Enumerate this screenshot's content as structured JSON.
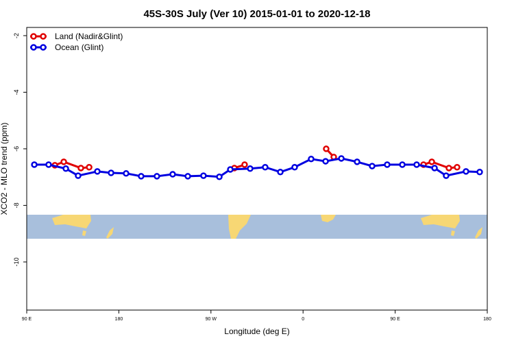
{
  "chart_data": {
    "type": "line",
    "title": "45S-30S July (Ver 10)   2015-01-01 to 2020-12-18",
    "x_label": "Longitude (deg E)",
    "y_label": "XCO2 - MLO trend (ppm)",
    "xlim": [
      90,
      540
    ],
    "ylim": [
      -11.7,
      -1.71
    ],
    "xticks": [
      {
        "value": 90,
        "label": "90 E"
      },
      180,
      {
        "value": 270,
        "label": "90 W"
      },
      {
        "value": 360,
        "label": "0"
      },
      {
        "value": 450,
        "label": "90 E"
      },
      {
        "value": 540,
        "label": "180"
      }
    ],
    "yticks": [
      -2,
      -4,
      -6,
      -8,
      -10
    ],
    "legend": "top-left",
    "series": [
      {
        "name": "Land (Nadir&Glint)",
        "color": "#e00000",
        "x": [
          117.5,
          126.2,
          142.9,
          151.0,
          null,
          292.9,
          302.9,
          null,
          382.6,
          390.0,
          null,
          477.7,
          485.8,
          502.5,
          510.5
        ],
        "values": [
          -6.58,
          -6.46,
          -6.68,
          -6.65,
          null,
          -6.68,
          -6.56,
          null,
          -6.0,
          -6.29,
          null,
          -6.56,
          -6.46,
          -6.68,
          -6.65
        ]
      },
      {
        "name": "Ocean (Glint)",
        "color": "#0000e0",
        "x": [
          97.4,
          111.4,
          128.2,
          140.2,
          159.0,
          172.4,
          187.1,
          201.8,
          217.2,
          232.6,
          247.4,
          262.7,
          278.2,
          288.9,
          308.3,
          323.0,
          337.8,
          351.8,
          367.9,
          382.0,
          397.4,
          412.8,
          427.5,
          442.2,
          457.0,
          471.0,
          488.5,
          499.8,
          519.2,
          532.6
        ],
        "values": [
          -6.56,
          -6.56,
          -6.7,
          -6.95,
          -6.8,
          -6.85,
          -6.87,
          -6.97,
          -6.97,
          -6.9,
          -6.97,
          -6.95,
          -6.99,
          -6.73,
          -6.7,
          -6.65,
          -6.82,
          -6.65,
          -6.36,
          -6.44,
          -6.34,
          -6.46,
          -6.61,
          -6.56,
          -6.56,
          -6.56,
          -6.68,
          -6.95,
          -6.8,
          -6.82
        ]
      }
    ]
  }
}
